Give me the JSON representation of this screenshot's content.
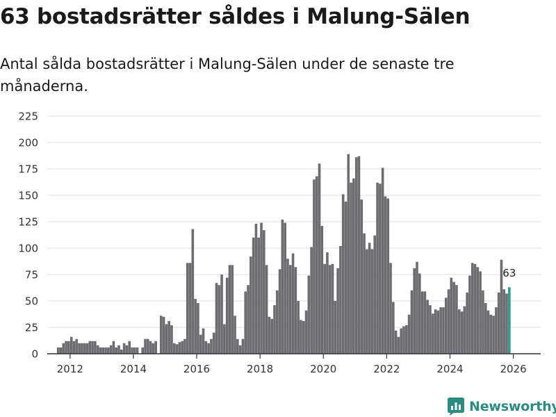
{
  "title": "63 bostadsrätter såldes i Malung-Sälen",
  "subtitle": "Antal sålda bostadsrätter i Malung-Sälen under de senaste tre månaderna.",
  "logo": {
    "text": "Newsworthy",
    "icon": "newsworthy-logo-icon"
  },
  "colors": {
    "bar": "#6d6c70",
    "highlight": "#2a9d8f",
    "grid": "#dddddd",
    "axis": "#333333",
    "text": "#333333"
  },
  "chart_data": {
    "type": "bar",
    "title": "63 bostadsrätter såldes i Malung-Sälen",
    "xlabel": "",
    "ylabel": "",
    "ylim": [
      0,
      225
    ],
    "yticks": [
      "0",
      "25",
      "50",
      "75",
      "100",
      "125",
      "150",
      "175",
      "200",
      "225"
    ],
    "xticks": [
      "2012",
      "2014",
      "2016",
      "2018",
      "2020",
      "2022",
      "2024",
      "2026"
    ],
    "x_start": 2011.625,
    "step_years": 0.08333,
    "grid": true,
    "highlight_label": "63",
    "values": [
      6,
      6,
      10,
      12,
      12,
      16,
      12,
      14,
      10,
      10,
      10,
      10,
      12,
      12,
      12,
      8,
      6,
      6,
      6,
      6,
      8,
      12,
      6,
      8,
      4,
      10,
      8,
      12,
      6,
      6,
      6,
      0,
      6,
      14,
      14,
      12,
      10,
      12,
      0,
      36,
      35,
      28,
      31,
      27,
      10,
      9,
      11,
      12,
      14,
      86,
      86,
      118,
      52,
      48,
      18,
      24,
      12,
      10,
      14,
      20,
      67,
      65,
      75,
      28,
      72,
      84,
      84,
      36,
      14,
      8,
      14,
      59,
      65,
      92,
      110,
      123,
      110,
      124,
      117,
      84,
      35,
      33,
      46,
      60,
      80,
      127,
      124,
      90,
      84,
      95,
      82,
      50,
      32,
      31,
      41,
      74,
      101,
      165,
      168,
      180,
      121,
      85,
      96,
      84,
      85,
      50,
      81,
      102,
      151,
      144,
      189,
      162,
      166,
      186,
      187,
      146,
      114,
      99,
      105,
      99,
      112,
      162,
      161,
      176,
      149,
      147,
      86,
      49,
      22,
      16,
      24,
      26,
      27,
      37,
      60,
      81,
      87,
      76,
      59,
      59,
      51,
      46,
      38,
      42,
      41,
      44,
      44,
      53,
      61,
      72,
      68,
      65,
      42,
      40,
      45,
      58,
      74,
      86,
      85,
      82,
      78,
      60,
      48,
      41,
      37,
      36,
      44,
      58,
      89,
      61,
      57,
      63
    ]
  }
}
